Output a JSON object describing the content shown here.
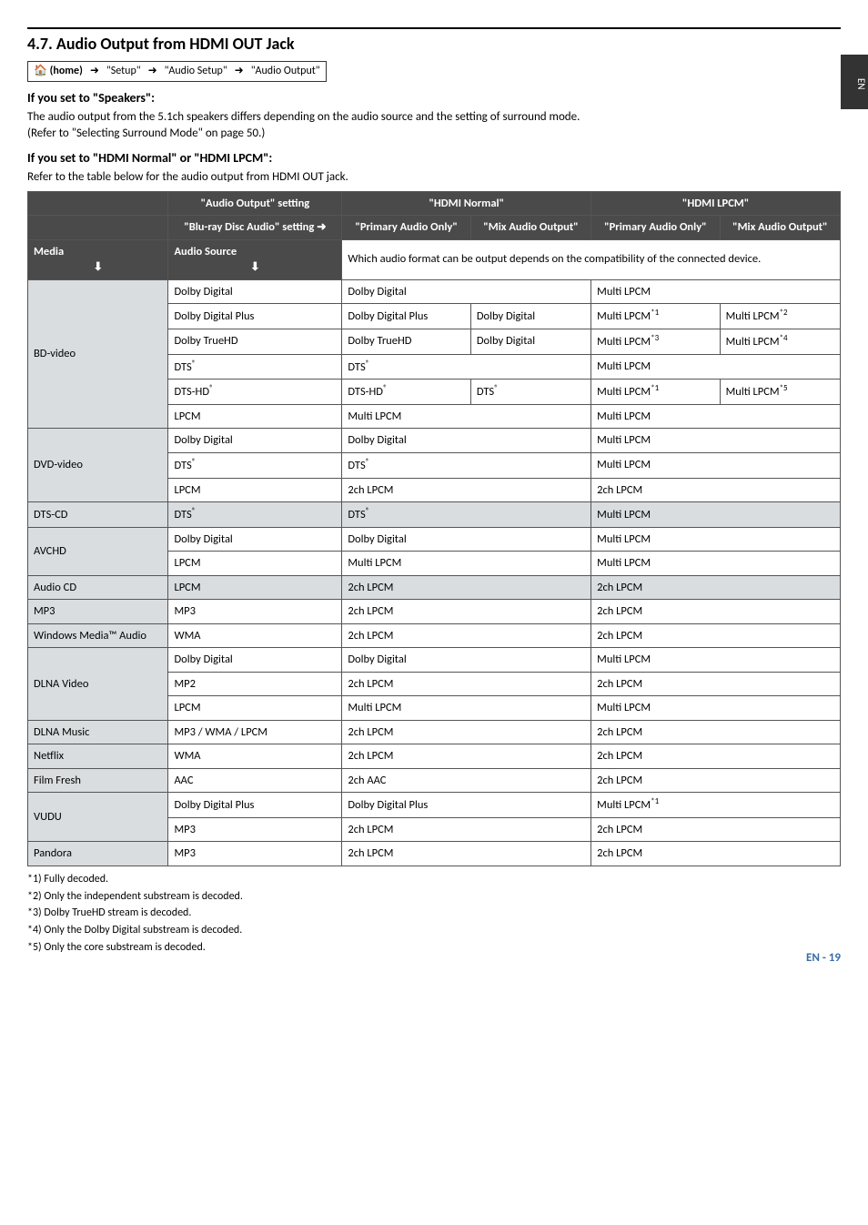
{
  "sideTab": "EN",
  "sectionTitle": "4.7.  Audio Output from HDMI OUT Jack",
  "breadcrumb": [
    "🏠 (home)",
    "\"Setup\"",
    "\"Audio Setup\"",
    "\"Audio Output\""
  ],
  "speakers": {
    "heading": "If you set to \"Speakers\":",
    "line1": "The audio output from the 5.1ch speakers differs depending on the audio source and the setting of surround mode.",
    "line2": "(Refer to \"Selecting Surround Mode\" on page 50.)"
  },
  "hdmi": {
    "heading": "If you set to \"HDMI Normal\" or \"HDMI LPCM\":",
    "intro": "Refer to the table below for the audio output from HDMI OUT jack."
  },
  "table": {
    "h_audioOutput": "\"Audio Output\" setting",
    "h_hdmiNormal": "\"HDMI Normal\"",
    "h_hdmiLpcm": "\"HDMI LPCM\"",
    "h_bluray": "\"Blu-ray Disc Audio\" setting ➜",
    "h_primaryOnly": "\"Primary Audio Only\"",
    "h_mixOutput": "\"Mix Audio Output\"",
    "h_media": "Media",
    "h_audioSource": "Audio Source",
    "h_deviceNote": "Which audio format can be output depends on the compatibility of the connected device.",
    "rows": {
      "bdvideo": "BD-video",
      "dvdvideo": "DVD-video",
      "dtscd": "DTS-CD",
      "avchd": "AVCHD",
      "audiocd": "Audio CD",
      "mp3": "MP3",
      "wma": "Windows Media™ Audio",
      "dlnav": "DLNA Video",
      "dlnam": "DLNA Music",
      "netflix": "Netflix",
      "filmfresh": "Film Fresh",
      "vudu": "VUDU",
      "pandora": "Pandora"
    },
    "src": {
      "dd": "Dolby Digital",
      "ddp": "Dolby Digital Plus",
      "dthd": "Dolby TrueHD",
      "dts": "DTS",
      "dtshd": "DTS-HD",
      "lpcm": "LPCM",
      "wma": "WMA",
      "mp3": "MP3",
      "mp2": "MP2",
      "mp3wmalpcm": "MP3 / WMA / LPCM",
      "aac": "AAC"
    },
    "out": {
      "dd": "Dolby Digital",
      "ddp": "Dolby Digital Plus",
      "dthd": "Dolby TrueHD",
      "dts": "DTS",
      "dtshd": "DTS-HD",
      "multi": "Multi LPCM",
      "2ch": "2ch LPCM",
      "2chaac": "2ch AAC",
      "m1": "Multi LPCM",
      "s1": "*1",
      "s2": "*2",
      "s3": "*3",
      "s4": "*4",
      "s5": "*5"
    }
  },
  "footnotes": {
    "f1": "*1) Fully decoded.",
    "f2": "*2) Only the independent substream is decoded.",
    "f3": "*3) Dolby TrueHD stream is decoded.",
    "f4": "*4) Only the Dolby Digital substream is decoded.",
    "f5": "*5) Only the core substream is decoded."
  },
  "pageFooter": "EN - 19"
}
